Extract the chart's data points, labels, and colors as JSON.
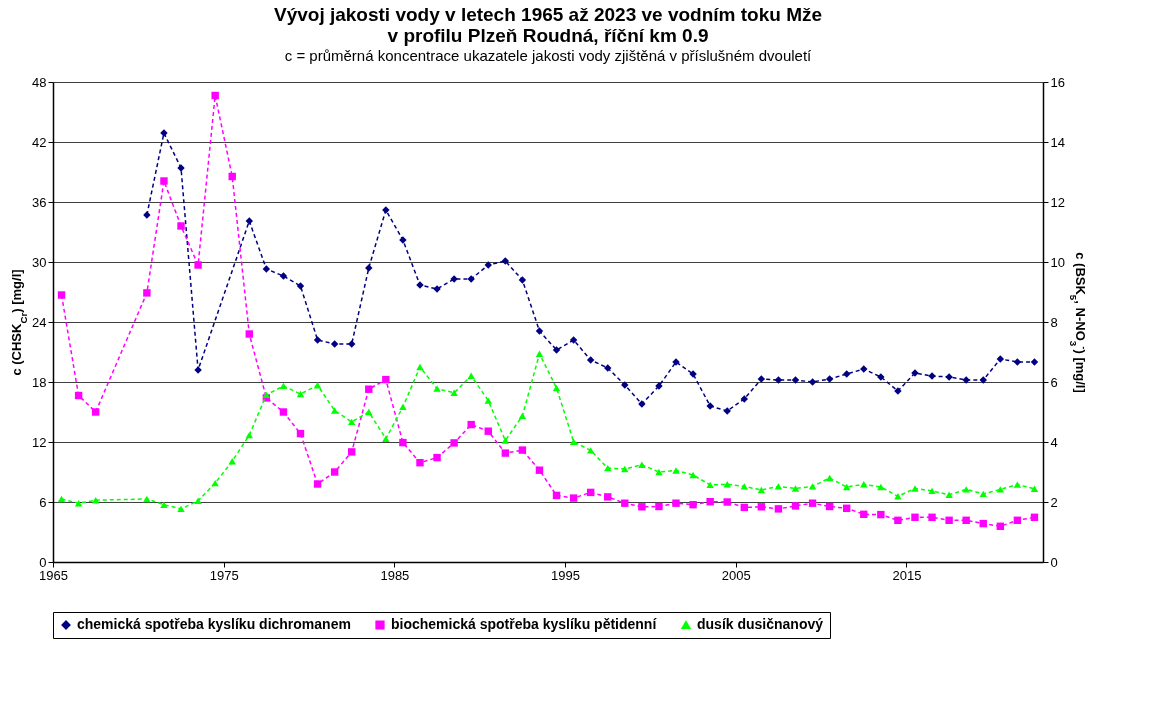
{
  "chart_data": {
    "type": "line",
    "title": "Vývoj jakosti vody v letech 1965 až 2023 ve vodním toku Mže\nv profilu Plzeň Roudná, říční km 0.9",
    "subtitle": "c = průměrná koncentrace ukazatele jakosti vody zjištěná v příslušném dvouletí",
    "ylabel": "c (CHSK$_{Cr}$) [mg/l]",
    "y2label": "c (BSK$_{5}$, N-NO$_{3}$$^{-}$) [mg/l]",
    "xlim": [
      1965,
      2023
    ],
    "xticks": [
      1965,
      1975,
      1985,
      1995,
      2005,
      2015
    ],
    "ylim": [
      0,
      48
    ],
    "yticks": [
      0,
      6,
      12,
      18,
      24,
      30,
      36,
      42,
      48
    ],
    "y2lim": [
      0,
      16
    ],
    "y2ticks": [
      0,
      2,
      4,
      6,
      8,
      10,
      12,
      14,
      16
    ],
    "grid": "y",
    "legend": "bottom",
    "line_style": "dashed",
    "series": [
      {
        "name": "chemická spotřeba kyslíku dichromanem",
        "color": "#000080",
        "marker": "diamond",
        "x": [
          1970.5,
          1971.5,
          1972.5,
          1973.5,
          1976.5,
          1977.5,
          1978.5,
          1979.5,
          1980.5,
          1981.5,
          1982.5,
          1983.5,
          1984.5,
          1985.5,
          1986.5,
          1987.5,
          1988.5,
          1989.5,
          1990.5,
          1991.5,
          1992.5,
          1993.5,
          1994.5,
          1995.5,
          1996.5,
          1997.5,
          1998.5,
          1999.5,
          2000.5,
          2001.5,
          2002.5,
          2003.5,
          2004.5,
          2005.5,
          2006.5,
          2007.5,
          2008.5,
          2009.5,
          2010.5,
          2011.5,
          2012.5,
          2013.5,
          2014.5,
          2015.5,
          2016.5,
          2017.5,
          2018.5,
          2019.5,
          2020.5,
          2021.5,
          2022.5
        ],
        "values": [
          34.7,
          42.9,
          39.4,
          19.2,
          34.1,
          29.3,
          28.6,
          27.6,
          22.2,
          21.8,
          21.8,
          29.4,
          35.2,
          32.2,
          27.7,
          27.3,
          28.3,
          28.3,
          29.7,
          30.1,
          28.2,
          23.1,
          21.2,
          22.2,
          20.2,
          19.4,
          17.7,
          15.8,
          17.6,
          20.0,
          18.8,
          15.6,
          15.1,
          16.3,
          18.3,
          18.2,
          18.2,
          18.0,
          18.3,
          18.8,
          19.3,
          18.5,
          17.1,
          18.9,
          18.6,
          18.5,
          18.2,
          18.2,
          20.3,
          20.0,
          20.0
        ]
      },
      {
        "name": "biochemická spotřeba kyslíku pětidenní",
        "color": "#ff00ff",
        "marker": "square",
        "axis": "y2",
        "x": [
          1965.5,
          1966.5,
          1967.5,
          1970.5,
          1971.5,
          1972.5,
          1973.5,
          1974.5,
          1975.5,
          1976.5,
          1977.5,
          1978.5,
          1979.5,
          1980.5,
          1981.5,
          1982.5,
          1983.5,
          1984.5,
          1985.5,
          1986.5,
          1987.5,
          1988.5,
          1989.5,
          1990.5,
          1991.5,
          1992.5,
          1993.5,
          1994.5,
          1995.5,
          1996.5,
          1997.5,
          1998.5,
          1999.5,
          2000.5,
          2001.5,
          2002.5,
          2003.5,
          2004.5,
          2005.5,
          2006.5,
          2007.5,
          2008.5,
          2009.5,
          2010.5,
          2011.5,
          2012.5,
          2013.5,
          2014.5,
          2015.5,
          2016.5,
          2017.5,
          2018.5,
          2019.5,
          2020.5,
          2021.5,
          2022.5
        ],
        "values": [
          8.9,
          5.55,
          5.0,
          8.97,
          12.7,
          11.2,
          9.9,
          15.55,
          12.85,
          7.6,
          5.47,
          5.0,
          4.28,
          2.6,
          3.0,
          3.67,
          5.76,
          6.08,
          3.98,
          3.31,
          3.48,
          3.97,
          4.58,
          4.36,
          3.63,
          3.73,
          3.06,
          2.22,
          2.13,
          2.32,
          2.17,
          1.96,
          1.84,
          1.85,
          1.96,
          1.91,
          2.01,
          2.0,
          1.82,
          1.84,
          1.77,
          1.87,
          1.96,
          1.85,
          1.79,
          1.59,
          1.58,
          1.39,
          1.49,
          1.49,
          1.39,
          1.39,
          1.28,
          1.19,
          1.39,
          1.49
        ]
      },
      {
        "name": "dusík dusičnanový",
        "color": "#00ff00",
        "marker": "triangle",
        "axis": "y2",
        "x": [
          1965.5,
          1966.5,
          1967.5,
          1970.5,
          1971.5,
          1972.5,
          1973.5,
          1974.5,
          1975.5,
          1976.5,
          1977.5,
          1978.5,
          1979.5,
          1980.5,
          1981.5,
          1982.5,
          1983.5,
          1984.5,
          1985.5,
          1986.5,
          1987.5,
          1988.5,
          1989.5,
          1990.5,
          1991.5,
          1992.5,
          1993.5,
          1994.5,
          1995.5,
          1996.5,
          1997.5,
          1998.5,
          1999.5,
          2000.5,
          2001.5,
          2002.5,
          2003.5,
          2004.5,
          2005.5,
          2006.5,
          2007.5,
          2008.5,
          2009.5,
          2010.5,
          2011.5,
          2012.5,
          2013.5,
          2014.5,
          2015.5,
          2016.5,
          2017.5,
          2018.5,
          2019.5,
          2020.5,
          2021.5,
          2022.5
        ],
        "values": [
          2.1,
          1.96,
          2.06,
          2.1,
          1.91,
          1.77,
          2.04,
          2.63,
          3.36,
          4.23,
          5.57,
          5.87,
          5.6,
          5.89,
          5.05,
          4.67,
          5.0,
          4.11,
          5.17,
          6.5,
          5.78,
          5.64,
          6.21,
          5.38,
          4.05,
          4.87,
          6.94,
          5.8,
          4.01,
          3.72,
          3.13,
          3.1,
          3.24,
          3.0,
          3.05,
          2.9,
          2.57,
          2.59,
          2.52,
          2.4,
          2.52,
          2.45,
          2.52,
          2.8,
          2.5,
          2.59,
          2.5,
          2.19,
          2.45,
          2.37,
          2.24,
          2.42,
          2.27,
          2.42,
          2.58,
          2.44
        ]
      }
    ]
  }
}
